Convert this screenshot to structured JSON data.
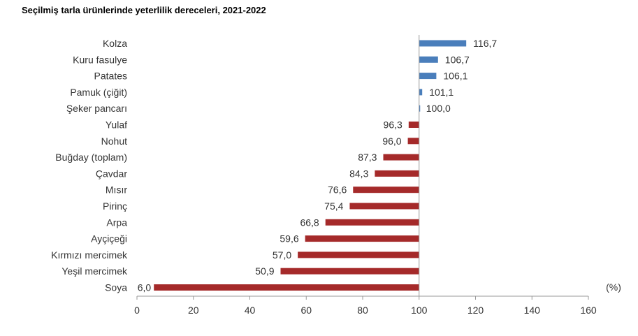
{
  "title": "Seçilmiş tarla ürünlerinde yeterlilik dereceleri, 2021-2022",
  "chart_data": {
    "type": "bar",
    "orientation": "horizontal",
    "title": "Seçilmiş tarla ürünlerinde yeterlilik dereceleri, 2021-2022",
    "unit_label": "(%)",
    "baseline": 100,
    "xlim": [
      0,
      160
    ],
    "xticks": [
      "0",
      "20",
      "40",
      "60",
      "80",
      "100",
      "120",
      "140",
      "160"
    ],
    "grid": false,
    "colors": {
      "above": "#4a7ebb",
      "below": "#a52a2a"
    },
    "categories": [
      "Kolza",
      "Kuru fasulye",
      "Patates",
      "Pamuk (çiğit)",
      "Şeker pancarı",
      "Yulaf",
      "Nohut",
      "Buğday (toplam)",
      "Çavdar",
      "Mısır",
      "Pirinç",
      "Arpa",
      "Ayçiçeği",
      "Kırmızı mercimek",
      "Yeşil mercimek",
      "Soya"
    ],
    "values": [
      116.7,
      106.7,
      106.1,
      101.1,
      100.0,
      96.3,
      96.0,
      87.3,
      84.3,
      76.6,
      75.4,
      66.8,
      59.6,
      57.0,
      50.9,
      6.0
    ],
    "labels": [
      "116,7",
      "106,7",
      "106,1",
      "101,1",
      "100,0",
      "96,3",
      "96,0",
      "87,3",
      "84,3",
      "76,6",
      "75,4",
      "66,8",
      "59,6",
      "57,0",
      "50,9",
      "6,0"
    ]
  }
}
